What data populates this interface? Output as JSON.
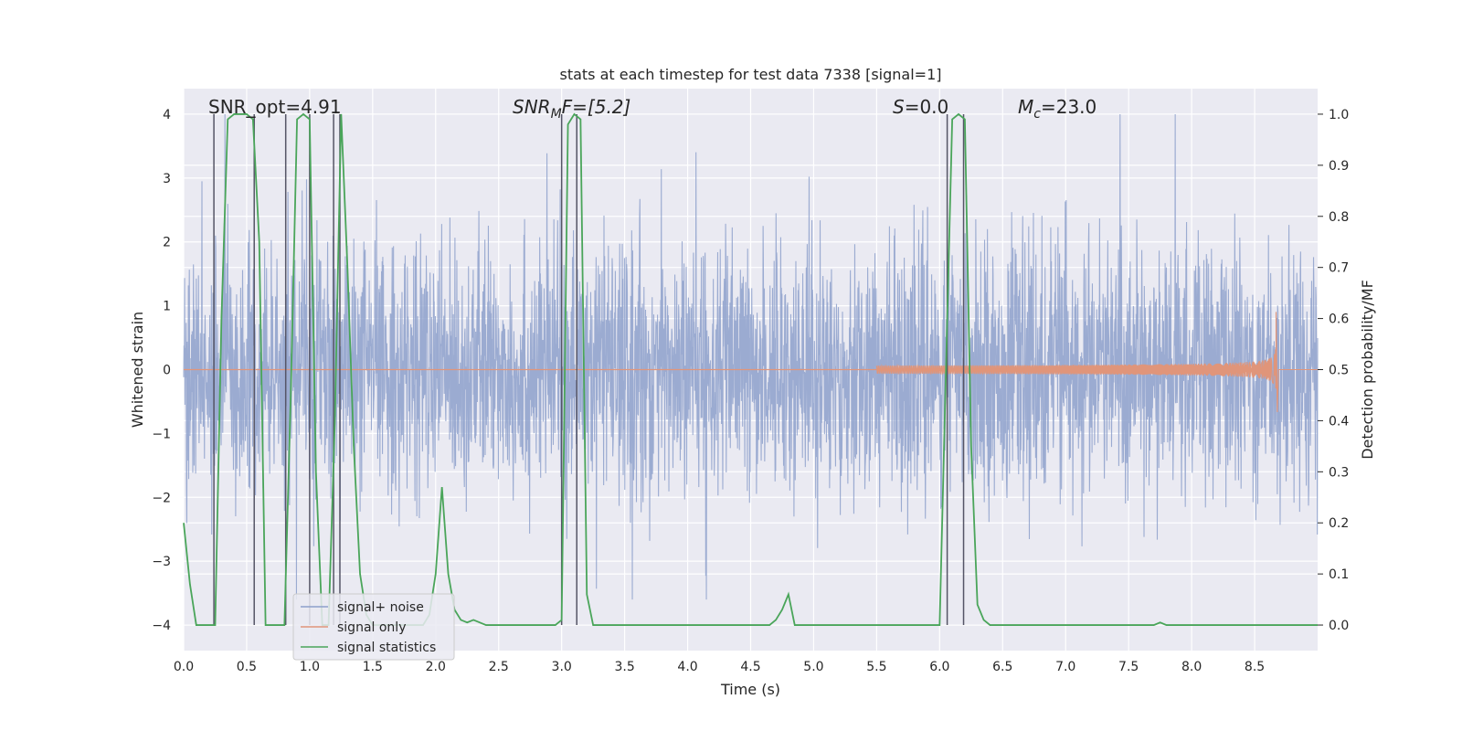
{
  "chart_data": {
    "type": "line",
    "title": "stats at each timestep for test data 7338 [signal=1]",
    "xlabel": "Time (s)",
    "ylabel": "Whitened strain",
    "ylabel_right": "Detection probability/MF",
    "xlim": [
      0.0,
      9.0
    ],
    "ylim": [
      -4.4,
      4.4
    ],
    "ylim_right": [
      -0.05,
      1.05
    ],
    "xticks": [
      "0.0",
      "0.5",
      "1.0",
      "1.5",
      "2.0",
      "2.5",
      "3.0",
      "3.5",
      "4.0",
      "4.5",
      "5.0",
      "5.5",
      "6.0",
      "6.5",
      "7.0",
      "7.5",
      "8.0",
      "8.5"
    ],
    "yticks": [
      "4",
      "3",
      "2",
      "1",
      "0",
      "−1",
      "−2",
      "−3",
      "−4"
    ],
    "yticks_right": [
      "1.0",
      "0.9",
      "0.8",
      "0.7",
      "0.6",
      "0.5",
      "0.4",
      "0.3",
      "0.2",
      "0.1",
      "0.0"
    ],
    "grid": true,
    "legend_position": "lower-left",
    "annotations": [
      {
        "id": "snr_opt",
        "text": "SNR_opt=4.91"
      },
      {
        "id": "snr_mf",
        "text_main": "SNR",
        "text_sub": "M",
        "text_rest": "F=[5.2]"
      },
      {
        "id": "s",
        "text_main": "S",
        "text_rest": "=0.0"
      },
      {
        "id": "mc",
        "text_main": "M",
        "text_sub": "c",
        "text_rest": "=23.0"
      }
    ],
    "series": [
      {
        "name": "signal+ noise",
        "color": "#8da0cb",
        "description": "whitened noise, amplitude about ±1.5 typical with peaks to ±4"
      },
      {
        "name": "signal only",
        "color": "#e0957a",
        "description": "chirp signal growing from 0 until merger at ~8.65 s with amplitude ~0.9",
        "chirp": {
          "merger_time": 8.67,
          "peak_amplitude": 0.95,
          "visible_from": 5.5
        }
      },
      {
        "name": "signal statistics",
        "color": "#4aa55a",
        "x": [
          0.0,
          0.05,
          0.1,
          0.15,
          0.2,
          0.25,
          0.3,
          0.35,
          0.4,
          0.45,
          0.5,
          0.55,
          0.6,
          0.65,
          0.7,
          0.75,
          0.8,
          0.85,
          0.9,
          0.95,
          1.0,
          1.05,
          1.1,
          1.15,
          1.2,
          1.25,
          1.3,
          1.35,
          1.4,
          1.45,
          1.5,
          1.55,
          1.6,
          1.65,
          1.7,
          1.75,
          1.8,
          1.85,
          1.9,
          1.95,
          2.0,
          2.05,
          2.1,
          2.15,
          2.2,
          2.25,
          2.3,
          2.4,
          2.5,
          2.6,
          2.7,
          2.8,
          2.9,
          2.95,
          3.0,
          3.05,
          3.1,
          3.15,
          3.2,
          3.25,
          3.3,
          3.5,
          4.0,
          4.5,
          4.65,
          4.7,
          4.75,
          4.8,
          4.85,
          5.0,
          5.5,
          6.0,
          6.05,
          6.1,
          6.15,
          6.2,
          6.25,
          6.3,
          6.35,
          6.4,
          6.45,
          6.5,
          7.0,
          7.5,
          7.7,
          7.75,
          7.8,
          8.0,
          8.5,
          9.0
        ],
        "y": [
          0.2,
          0.08,
          0.0,
          0.0,
          0.0,
          0.0,
          0.6,
          0.99,
          1.0,
          1.0,
          1.0,
          0.99,
          0.75,
          0.0,
          0.0,
          0.0,
          0.0,
          0.45,
          0.99,
          1.0,
          0.99,
          0.3,
          0.0,
          0.0,
          0.4,
          1.0,
          0.7,
          0.35,
          0.1,
          0.02,
          0.0,
          0.0,
          0.0,
          0.0,
          0.0,
          0.0,
          0.0,
          0.0,
          0.0,
          0.02,
          0.1,
          0.27,
          0.1,
          0.03,
          0.01,
          0.005,
          0.01,
          0.0,
          0.0,
          0.0,
          0.0,
          0.0,
          0.0,
          0.0,
          0.01,
          0.98,
          1.0,
          0.99,
          0.06,
          0.0,
          0.0,
          0.0,
          0.0,
          0.0,
          0.0,
          0.01,
          0.03,
          0.06,
          0.0,
          0.0,
          0.0,
          0.0,
          0.5,
          0.99,
          1.0,
          0.99,
          0.35,
          0.04,
          0.01,
          0.0,
          0.0,
          0.0,
          0.0,
          0.0,
          0.0,
          0.005,
          0.0,
          0.0,
          0.0,
          0.0
        ]
      }
    ],
    "vertical_lines_x": [
      0.24,
      0.56,
      0.81,
      1.0,
      1.19,
      1.24,
      3.0,
      3.12,
      6.06,
      6.19
    ]
  }
}
